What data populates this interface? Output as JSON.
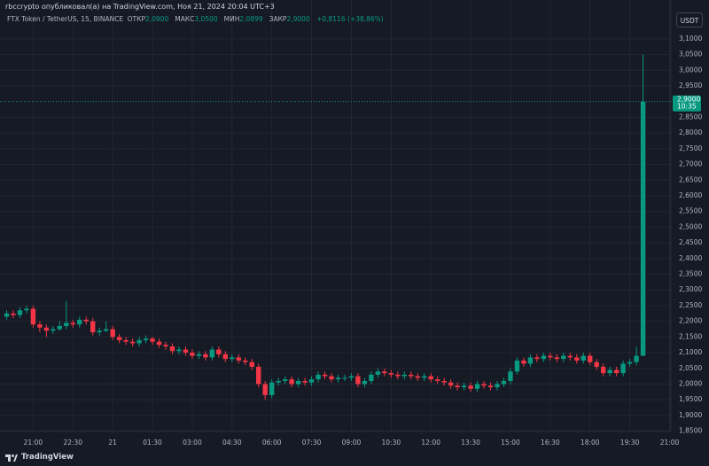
{
  "header": {
    "author_line": "rbccrypto опубликовал(а) на TradingView.com, Ноя 21, 2024 20:04 UTC+3",
    "symbol": "FTX Token / TetherUS, 15, BINANCE",
    "ohlc": [
      {
        "label": "ОТКР",
        "value": "2,0900"
      },
      {
        "label": "МАКС",
        "value": "3,0500"
      },
      {
        "label": "МИН",
        "value": "2,0899"
      },
      {
        "label": "ЗАКР",
        "value": "2,9000"
      }
    ],
    "change": "+0,8116 (+38,86%)",
    "currency": "USDT"
  },
  "price_tag": {
    "price": "2,9000",
    "countdown": "10:35"
  },
  "footer": "TradingView",
  "chart_data": {
    "type": "candlestick",
    "up_color": "#089981",
    "down_color": "#f23645",
    "grid": true,
    "xlim": [
      -1,
      100.2
    ],
    "xticks": [
      {
        "value": 4,
        "label": "21:00"
      },
      {
        "value": 10,
        "label": "22:30"
      },
      {
        "value": 16,
        "label": "21"
      },
      {
        "value": 22,
        "label": "01:30"
      },
      {
        "value": 28,
        "label": "03:00"
      },
      {
        "value": 34,
        "label": "04:30"
      },
      {
        "value": 40,
        "label": "06:00"
      },
      {
        "value": 46,
        "label": "07:30"
      },
      {
        "value": 52,
        "label": "09:00"
      },
      {
        "value": 58,
        "label": "10:30"
      },
      {
        "value": 64,
        "label": "12:00"
      },
      {
        "value": 70,
        "label": "13:30"
      },
      {
        "value": 76,
        "label": "15:00"
      },
      {
        "value": 82,
        "label": "16:30"
      },
      {
        "value": 88,
        "label": "18:00"
      },
      {
        "value": 94,
        "label": "19:30"
      },
      {
        "value": 100,
        "label": "21:00"
      }
    ],
    "ylim": [
      1.849,
      3.125
    ],
    "yticks": [
      {
        "value": 1.85,
        "label": "1,8500"
      },
      {
        "value": 1.9,
        "label": "1,9000"
      },
      {
        "value": 1.95,
        "label": "1,9500"
      },
      {
        "value": 2.0,
        "label": "2,0000"
      },
      {
        "value": 2.05,
        "label": "2,0500"
      },
      {
        "value": 2.1,
        "label": "2,1000"
      },
      {
        "value": 2.15,
        "label": "2,1500"
      },
      {
        "value": 2.2,
        "label": "2,2000"
      },
      {
        "value": 2.25,
        "label": "2,2500"
      },
      {
        "value": 2.3,
        "label": "2,3000"
      },
      {
        "value": 2.35,
        "label": "2,3500"
      },
      {
        "value": 2.4,
        "label": "2,4000"
      },
      {
        "value": 2.45,
        "label": "2,4500"
      },
      {
        "value": 2.5,
        "label": "2,5000"
      },
      {
        "value": 2.55,
        "label": "2,5500"
      },
      {
        "value": 2.6,
        "label": "2,6000"
      },
      {
        "value": 2.65,
        "label": "2,6500"
      },
      {
        "value": 2.7,
        "label": "2,7000"
      },
      {
        "value": 2.75,
        "label": "2,7500"
      },
      {
        "value": 2.8,
        "label": "2,8000"
      },
      {
        "value": 2.85,
        "label": "2,8500"
      },
      {
        "value": 2.95,
        "label": "2,9500"
      },
      {
        "value": 3.0,
        "label": "3,0000"
      },
      {
        "value": 3.05,
        "label": "3,0500"
      },
      {
        "value": 3.1,
        "label": "3,1000"
      }
    ],
    "open": [
      2.215,
      2.225,
      2.22,
      2.235,
      2.24,
      2.19,
      2.18,
      2.17,
      2.175,
      2.185,
      2.195,
      2.19,
      2.205,
      2.2,
      2.165,
      2.17,
      2.175,
      2.15,
      2.14,
      2.135,
      2.13,
      2.14,
      2.145,
      2.135,
      2.125,
      2.12,
      2.105,
      2.11,
      2.1,
      2.09,
      2.095,
      2.085,
      2.11,
      2.095,
      2.08,
      2.085,
      2.075,
      2.07,
      2.055,
      2.0,
      1.965,
      2.005,
      2.01,
      2.015,
      2.0,
      2.01,
      2.005,
      2.015,
      2.03,
      2.025,
      2.015,
      2.02,
      2.02,
      2.025,
      2.0,
      2.01,
      2.03,
      2.04,
      2.035,
      2.03,
      2.025,
      2.03,
      2.025,
      2.02,
      2.025,
      2.015,
      2.01,
      2.005,
      1.995,
      1.99,
      1.995,
      1.985,
      2.0,
      1.995,
      1.99,
      2.0,
      2.01,
      2.04,
      2.075,
      2.065,
      2.085,
      2.08,
      2.09,
      2.085,
      2.08,
      2.09,
      2.085,
      2.075,
      2.09,
      2.07,
      2.055,
      2.035,
      2.045,
      2.035,
      2.065,
      2.07,
      2.09
    ],
    "high": [
      2.235,
      2.235,
      2.245,
      2.25,
      2.25,
      2.2,
      2.19,
      2.185,
      2.2,
      2.265,
      2.205,
      2.215,
      2.215,
      2.21,
      2.18,
      2.2,
      2.185,
      2.16,
      2.15,
      2.145,
      2.15,
      2.155,
      2.15,
      2.145,
      2.135,
      2.13,
      2.12,
      2.12,
      2.11,
      2.105,
      2.105,
      2.12,
      2.12,
      2.105,
      2.095,
      2.095,
      2.085,
      2.08,
      2.065,
      2.01,
      2.015,
      2.02,
      2.025,
      2.025,
      2.02,
      2.02,
      2.025,
      2.04,
      2.04,
      2.035,
      2.03,
      2.03,
      2.035,
      2.035,
      2.02,
      2.04,
      2.05,
      2.05,
      2.045,
      2.04,
      2.04,
      2.04,
      2.035,
      2.035,
      2.035,
      2.025,
      2.02,
      2.015,
      2.005,
      2.005,
      2.005,
      2.01,
      2.01,
      2.005,
      2.01,
      2.02,
      2.05,
      2.085,
      2.085,
      2.095,
      2.095,
      2.1,
      2.1,
      2.095,
      2.1,
      2.1,
      2.095,
      2.1,
      2.1,
      2.08,
      2.065,
      2.055,
      2.055,
      2.075,
      2.08,
      2.12,
      3.05
    ],
    "low": [
      2.205,
      2.21,
      2.21,
      2.225,
      2.18,
      2.165,
      2.15,
      2.16,
      2.17,
      2.175,
      2.18,
      2.18,
      2.19,
      2.155,
      2.155,
      2.165,
      2.14,
      2.13,
      2.125,
      2.12,
      2.12,
      2.13,
      2.125,
      2.115,
      2.11,
      2.095,
      2.095,
      2.09,
      2.08,
      2.08,
      2.075,
      2.075,
      2.085,
      2.07,
      2.07,
      2.065,
      2.06,
      2.045,
      1.99,
      1.95,
      1.955,
      1.995,
      2.0,
      1.99,
      1.99,
      1.995,
      1.995,
      2.005,
      2.015,
      2.005,
      2.005,
      2.01,
      2.01,
      1.99,
      1.99,
      2.0,
      2.02,
      2.025,
      2.02,
      2.015,
      2.015,
      2.015,
      2.01,
      2.01,
      2.005,
      2.0,
      1.995,
      1.985,
      1.98,
      1.98,
      1.975,
      1.975,
      1.985,
      1.98,
      1.98,
      1.99,
      2.0,
      2.03,
      2.055,
      2.055,
      2.07,
      2.07,
      2.075,
      2.07,
      2.07,
      2.075,
      2.065,
      2.065,
      2.06,
      2.045,
      2.025,
      2.025,
      2.025,
      2.025,
      2.055,
      2.06,
      2.0899
    ],
    "close": [
      2.225,
      2.22,
      2.235,
      2.24,
      2.19,
      2.18,
      2.17,
      2.175,
      2.185,
      2.195,
      2.19,
      2.205,
      2.2,
      2.165,
      2.17,
      2.175,
      2.15,
      2.14,
      2.135,
      2.13,
      2.14,
      2.145,
      2.135,
      2.125,
      2.12,
      2.105,
      2.11,
      2.1,
      2.09,
      2.095,
      2.085,
      2.11,
      2.095,
      2.08,
      2.085,
      2.075,
      2.07,
      2.055,
      2.0,
      1.965,
      2.005,
      2.01,
      2.015,
      2.0,
      2.01,
      2.005,
      2.015,
      2.03,
      2.025,
      2.015,
      2.02,
      2.02,
      2.025,
      2.0,
      2.01,
      2.03,
      2.04,
      2.035,
      2.03,
      2.025,
      2.03,
      2.025,
      2.02,
      2.025,
      2.015,
      2.01,
      2.005,
      1.995,
      1.99,
      1.995,
      1.985,
      2.0,
      1.995,
      1.99,
      2.0,
      2.01,
      2.04,
      2.075,
      2.065,
      2.085,
      2.08,
      2.09,
      2.085,
      2.08,
      2.09,
      2.085,
      2.075,
      2.09,
      2.07,
      2.055,
      2.035,
      2.045,
      2.035,
      2.065,
      2.07,
      2.09,
      2.9
    ]
  }
}
